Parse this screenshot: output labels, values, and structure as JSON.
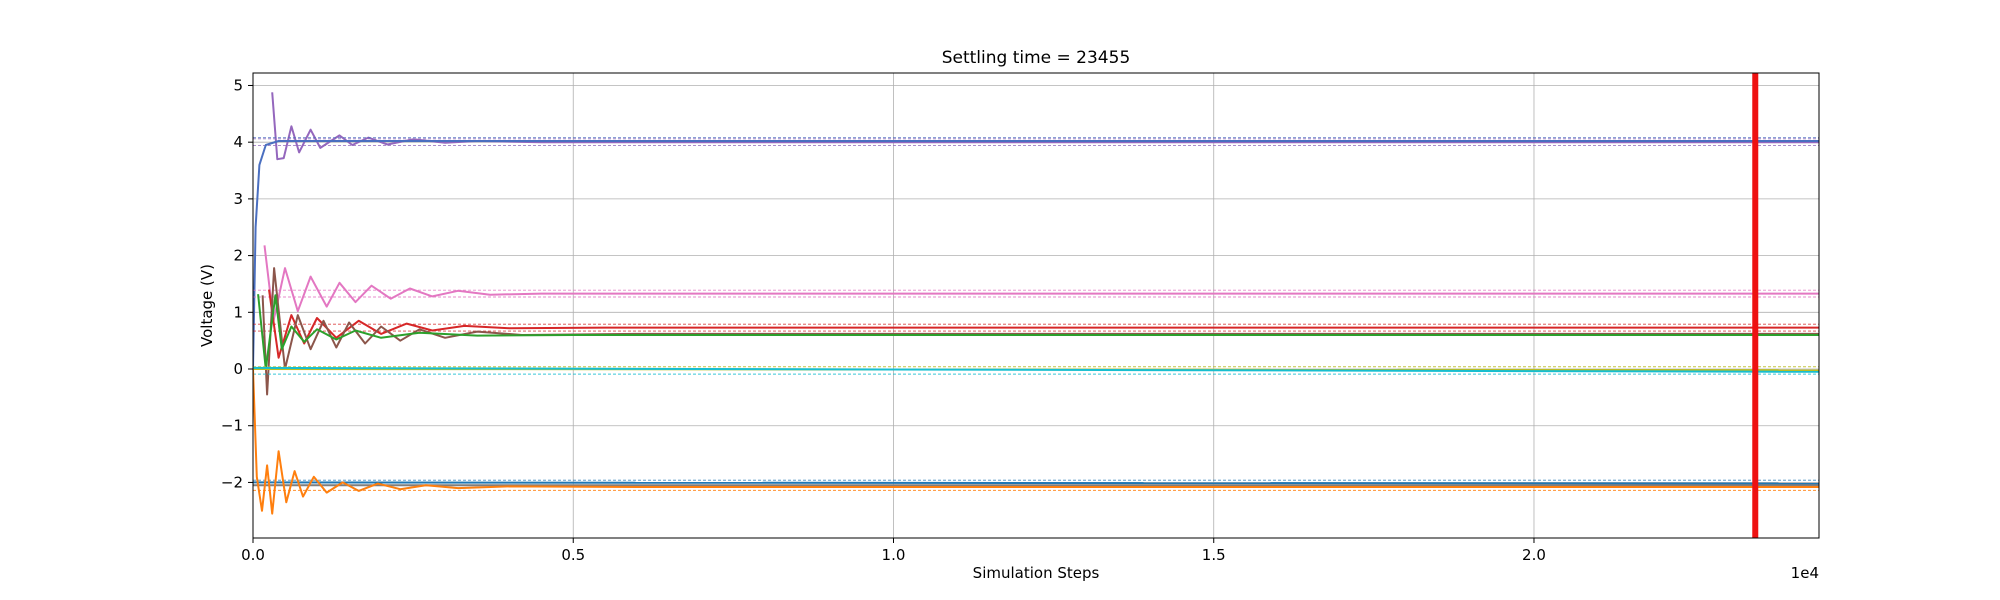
{
  "chart_data": {
    "type": "line",
    "title": "Settling time = 23455",
    "xlabel": "Simulation Steps",
    "ylabel": "Voltage (V)",
    "x_offset_label": "1e4",
    "xlim": [
      0,
      24450
    ],
    "ylim": [
      -2.98,
      5.22
    ],
    "grid": true,
    "x_ticks": [
      0,
      5000,
      10000,
      15000,
      20000
    ],
    "x_tick_labels": [
      "0.0",
      "0.5",
      "1.0",
      "1.5",
      "2.0"
    ],
    "y_ticks": [
      -2,
      -1,
      0,
      1,
      2,
      3,
      4,
      5
    ],
    "y_tick_labels": [
      "−2",
      "−1",
      "0",
      "1",
      "2",
      "3",
      "4",
      "5"
    ],
    "settling_time": 23455,
    "settling_line_color": "#ee1111",
    "series": [
      {
        "color": "#9467bd",
        "final": 4.0,
        "threshold_low": 3.94,
        "threshold_high": 4.06,
        "peaks": [
          [
            300,
            4.88
          ],
          [
            380,
            3.7
          ],
          [
            480,
            3.72
          ],
          [
            600,
            4.28
          ],
          [
            720,
            3.82
          ],
          [
            900,
            4.22
          ],
          [
            1050,
            3.9
          ],
          [
            1350,
            4.12
          ],
          [
            1550,
            3.95
          ],
          [
            1800,
            4.08
          ],
          [
            2100,
            3.96
          ],
          [
            2500,
            4.05
          ],
          [
            3000,
            3.99
          ],
          [
            3500,
            4.02
          ],
          [
            4500,
            4.0
          ]
        ]
      },
      {
        "color": "#4a6fc0",
        "final": 4.02,
        "threshold_low": null,
        "threshold_high": 4.08,
        "peaks": [
          [
            0,
            0.0
          ],
          [
            40,
            2.5
          ],
          [
            100,
            3.6
          ],
          [
            200,
            3.95
          ],
          [
            400,
            4.02
          ]
        ]
      },
      {
        "color": "#e377c2",
        "final": 1.33,
        "threshold_low": 1.27,
        "threshold_high": 1.39,
        "peaks": [
          [
            180,
            2.18
          ],
          [
            320,
            0.85
          ],
          [
            500,
            1.78
          ],
          [
            700,
            1.02
          ],
          [
            900,
            1.63
          ],
          [
            1150,
            1.1
          ],
          [
            1350,
            1.52
          ],
          [
            1600,
            1.18
          ],
          [
            1850,
            1.47
          ],
          [
            2150,
            1.24
          ],
          [
            2450,
            1.42
          ],
          [
            2800,
            1.28
          ],
          [
            3200,
            1.38
          ],
          [
            3700,
            1.31
          ],
          [
            4500,
            1.33
          ]
        ]
      },
      {
        "color": "#d62728",
        "final": 0.73,
        "threshold_low": 0.67,
        "threshold_high": 0.79,
        "peaks": [
          [
            250,
            1.4
          ],
          [
            400,
            0.2
          ],
          [
            600,
            0.95
          ],
          [
            800,
            0.45
          ],
          [
            1000,
            0.9
          ],
          [
            1300,
            0.55
          ],
          [
            1650,
            0.85
          ],
          [
            2000,
            0.62
          ],
          [
            2400,
            0.8
          ],
          [
            2800,
            0.68
          ],
          [
            3300,
            0.76
          ],
          [
            4000,
            0.72
          ],
          [
            5500,
            0.73
          ]
        ]
      },
      {
        "color": "#8c564b",
        "final": 0.62,
        "threshold_low": null,
        "threshold_high": null,
        "peaks": [
          [
            150,
            1.3
          ],
          [
            220,
            -0.45
          ],
          [
            330,
            1.78
          ],
          [
            500,
            0.0
          ],
          [
            700,
            0.95
          ],
          [
            900,
            0.35
          ],
          [
            1100,
            0.85
          ],
          [
            1300,
            0.38
          ],
          [
            1500,
            0.82
          ],
          [
            1750,
            0.45
          ],
          [
            2000,
            0.75
          ],
          [
            2300,
            0.5
          ],
          [
            2600,
            0.7
          ],
          [
            3000,
            0.55
          ],
          [
            3500,
            0.66
          ],
          [
            4200,
            0.6
          ],
          [
            6000,
            0.62
          ]
        ]
      },
      {
        "color": "#2ca02c",
        "final": 0.6,
        "threshold_low": null,
        "threshold_high": null,
        "peaks": [
          [
            80,
            1.32
          ],
          [
            200,
            0.0
          ],
          [
            350,
            1.3
          ],
          [
            450,
            0.35
          ],
          [
            600,
            0.75
          ],
          [
            800,
            0.48
          ],
          [
            1000,
            0.7
          ],
          [
            1300,
            0.52
          ],
          [
            1600,
            0.68
          ],
          [
            2000,
            0.55
          ],
          [
            2600,
            0.64
          ],
          [
            3500,
            0.59
          ],
          [
            5000,
            0.6
          ]
        ]
      },
      {
        "color": "#bcbd22",
        "final": -0.02,
        "threshold_low": null,
        "threshold_high": 0.04,
        "peaks": [
          [
            0,
            0.0
          ],
          [
            24450,
            -0.02
          ]
        ]
      },
      {
        "color": "#17becf",
        "final": -0.03,
        "threshold_low": -0.09,
        "threshold_high": null,
        "peaks": [
          [
            0,
            0.02
          ],
          [
            24450,
            -0.05
          ]
        ]
      },
      {
        "color": "#1f77b4",
        "final": -2.02,
        "threshold_low": null,
        "threshold_high": -1.96,
        "peaks": [
          [
            0,
            -2.0
          ],
          [
            24450,
            -2.02
          ]
        ]
      },
      {
        "color": "#7f7f7f",
        "final": -2.05,
        "threshold_low": null,
        "threshold_high": null,
        "peaks": [
          [
            0,
            -2.05
          ],
          [
            24450,
            -2.05
          ]
        ]
      },
      {
        "color": "#ff7f0e",
        "final": -2.08,
        "threshold_low": -2.14,
        "threshold_high": null,
        "peaks": [
          [
            0,
            0.0
          ],
          [
            60,
            -1.9
          ],
          [
            140,
            -2.5
          ],
          [
            220,
            -1.7
          ],
          [
            300,
            -2.55
          ],
          [
            400,
            -1.45
          ],
          [
            520,
            -2.35
          ],
          [
            650,
            -1.8
          ],
          [
            780,
            -2.25
          ],
          [
            950,
            -1.9
          ],
          [
            1150,
            -2.18
          ],
          [
            1400,
            -2.0
          ],
          [
            1650,
            -2.15
          ],
          [
            1950,
            -2.02
          ],
          [
            2300,
            -2.12
          ],
          [
            2700,
            -2.05
          ],
          [
            3200,
            -2.1
          ],
          [
            4000,
            -2.07
          ],
          [
            6000,
            -2.08
          ]
        ]
      }
    ]
  }
}
